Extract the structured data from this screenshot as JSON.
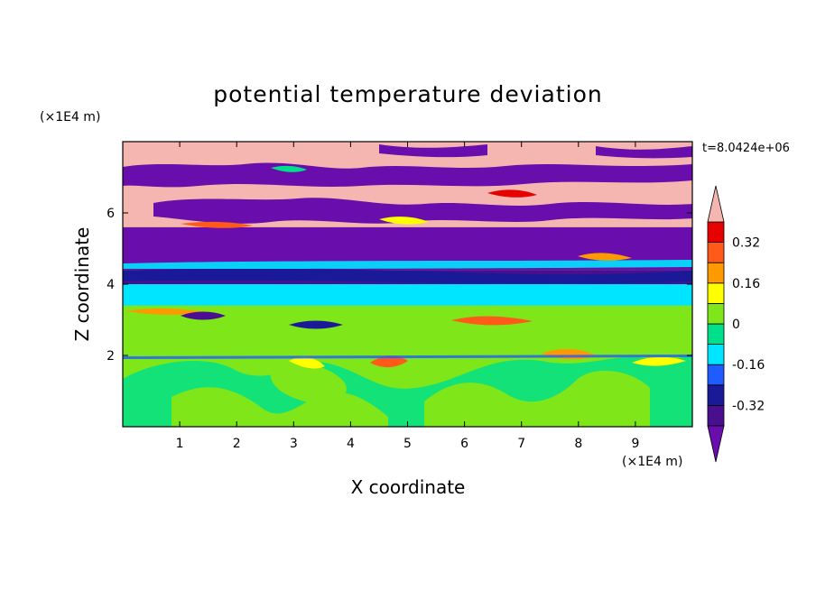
{
  "chart_data": {
    "type": "heatmap",
    "title": "potential temperature deviation",
    "time_label": "t=8.0424e+06",
    "xlabel": "X coordinate",
    "ylabel": "Z coordinate",
    "x_units": "(×1E4 m)",
    "y_units": "(×1E4 m)",
    "xlim": [
      0,
      10
    ],
    "ylim": [
      0,
      8
    ],
    "x_ticks": [
      1,
      2,
      3,
      4,
      5,
      6,
      7,
      8,
      9
    ],
    "y_ticks": [
      2,
      4,
      6
    ],
    "colorbar": {
      "levels": [
        -0.4,
        -0.32,
        -0.24,
        -0.16,
        -0.08,
        0,
        0.08,
        0.16,
        0.24,
        0.32,
        0.4
      ],
      "colors": [
        "#4a0f8f",
        "#1a1a99",
        "#1e5cff",
        "#00e5ff",
        "#00e08a",
        "#7fe61a",
        "#ffff00",
        "#ff9900",
        "#ff5a1a",
        "#e60000"
      ],
      "under_color": "#6a0dad",
      "over_color": "#f5b5b0",
      "tick_labels": [
        "0.32",
        "0.16",
        "0",
        "-0.16",
        "-0.32"
      ]
    },
    "bands": [
      {
        "z": [
          0.0,
          1.9
        ],
        "value": 0.05
      },
      {
        "z": [
          1.9,
          2.7
        ],
        "value": 0.0
      },
      {
        "z": [
          2.7,
          3.4
        ],
        "value": 0.05
      },
      {
        "z": [
          3.4,
          4.0
        ],
        "value": -0.12
      },
      {
        "z": [
          4.0,
          4.4
        ],
        "value": -0.36
      },
      {
        "z": [
          4.4,
          5.6
        ],
        "value": -0.5
      },
      {
        "z": [
          5.6,
          8.0
        ],
        "value": 0.5
      }
    ]
  }
}
